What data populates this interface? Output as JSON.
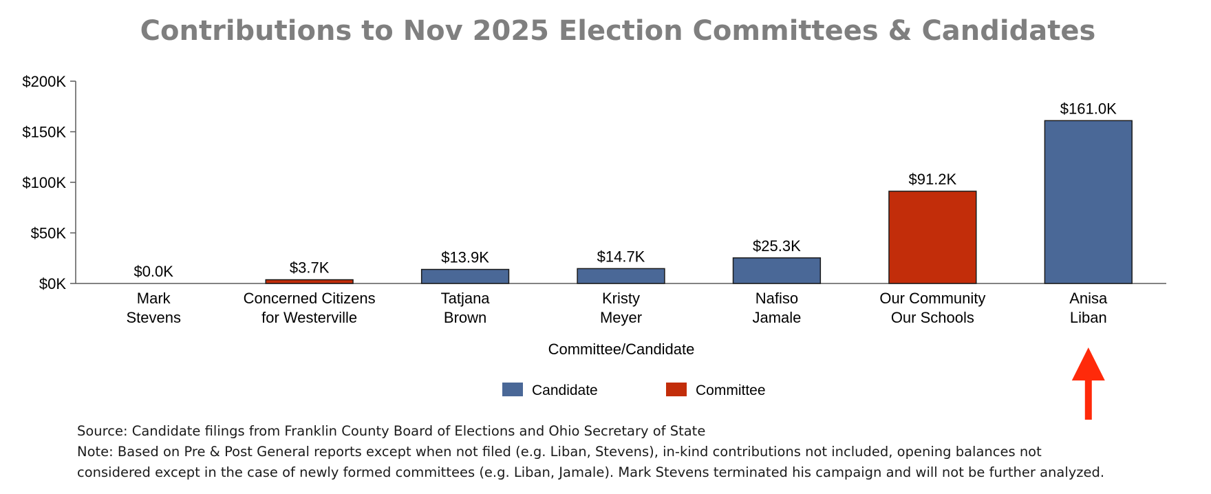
{
  "chart_data": {
    "type": "bar",
    "title": "Contributions to Nov 2025 Election Committees & Candidates",
    "xlabel": "Committee/Candidate",
    "ylabel": "",
    "ylim": [
      0,
      200
    ],
    "yticks": [
      {
        "value": 0,
        "label": "$0K"
      },
      {
        "value": 50,
        "label": "$50K"
      },
      {
        "value": 100,
        "label": "$100K"
      },
      {
        "value": 150,
        "label": "$150K"
      },
      {
        "value": 200,
        "label": "$200K"
      }
    ],
    "categories": [
      [
        "Mark",
        "Stevens"
      ],
      [
        "Concerned Citizens",
        "for Westerville"
      ],
      [
        "Tatjana",
        "Brown"
      ],
      [
        "Kristy",
        "Meyer"
      ],
      [
        "Nafiso",
        "Jamale"
      ],
      [
        "Our Community",
        "Our Schools"
      ],
      [
        "Anisa",
        "Liban"
      ]
    ],
    "values": [
      0.0,
      3.7,
      13.9,
      14.7,
      25.3,
      91.2,
      161.0
    ],
    "value_labels": [
      "$0.0K",
      "$3.7K",
      "$13.9K",
      "$14.7K",
      "$25.3K",
      "$91.2K",
      "$161.0K"
    ],
    "groups": [
      "Candidate",
      "Committee",
      "Candidate",
      "Candidate",
      "Candidate",
      "Committee",
      "Candidate"
    ],
    "legend": [
      {
        "name": "Candidate",
        "color": "#4a6897"
      },
      {
        "name": "Committee",
        "color": "#c22d0a"
      }
    ],
    "legend_position": "bottom-center",
    "grid": false,
    "annotation": {
      "type": "arrow",
      "color": "#ff2a0a",
      "points_to": "Anisa Liban"
    }
  },
  "source_text": "Source: Candidate filings from Franklin County Board of Elections and Ohio Secretary of State",
  "note_lines": [
    "Note: Based on Pre & Post General reports except when not filed (e.g. Liban, Stevens), in-kind contributions not included, opening balances not",
    "considered except in the case of newly formed committees (e.g. Liban, Jamale). Mark Stevens terminated his campaign and will not be further analyzed."
  ]
}
